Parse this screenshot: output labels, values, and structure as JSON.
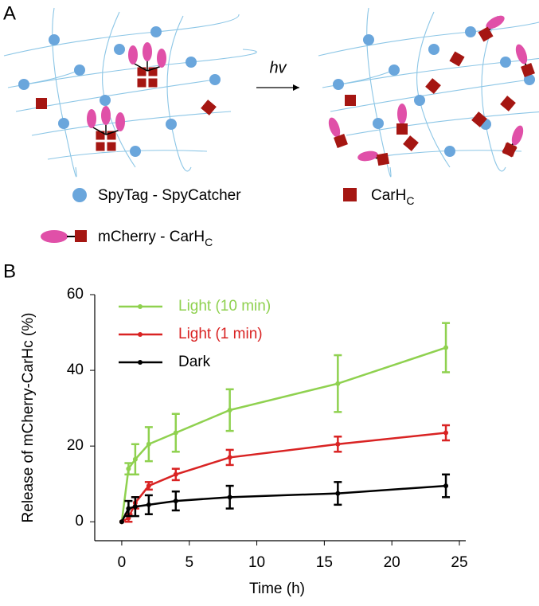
{
  "panel_labels": {
    "a": "A",
    "b": "B"
  },
  "diagram": {
    "arrow_label": "hv",
    "legend": {
      "dot": "SpyTag - SpyCatcher",
      "square": {
        "main": "CarH",
        "sub": "C"
      },
      "fusion": {
        "main": "mCherry - CarH",
        "sub": "C"
      }
    }
  },
  "chart_data": {
    "type": "line",
    "x_label": "Time (h)",
    "y_label": "Release of mCherry-CarHc (%)",
    "x": [
      0,
      0.5,
      1,
      2,
      4,
      8,
      16,
      24
    ],
    "series": [
      {
        "name": "Light (10 min)",
        "color": "#8fd14f",
        "values": [
          0,
          14,
          16.5,
          20.5,
          23.5,
          29.5,
          36.5,
          46
        ],
        "errors": [
          0,
          1.5,
          4,
          4.5,
          5,
          5.5,
          7.5,
          6.5
        ]
      },
      {
        "name": "Light (1 min)",
        "color": "#d92323",
        "values": [
          0,
          1,
          5,
          9.5,
          12.5,
          17,
          20.5,
          23.5
        ],
        "errors": [
          0,
          1,
          1.5,
          1,
          1.5,
          2,
          2,
          2
        ]
      },
      {
        "name": "Dark",
        "color": "#000000",
        "values": [
          0,
          3.5,
          4,
          4.5,
          5.5,
          6.5,
          7.5,
          9.5
        ],
        "errors": [
          0,
          2,
          2.5,
          2.5,
          2.5,
          3,
          3,
          3
        ]
      }
    ],
    "xlim": [
      -2,
      25
    ],
    "xticks": [
      0,
      5,
      10,
      15,
      20,
      25
    ],
    "ylim": [
      -5,
      60
    ],
    "yticks": [
      0,
      20,
      40,
      60
    ],
    "grid": false,
    "legend": "top-left"
  }
}
